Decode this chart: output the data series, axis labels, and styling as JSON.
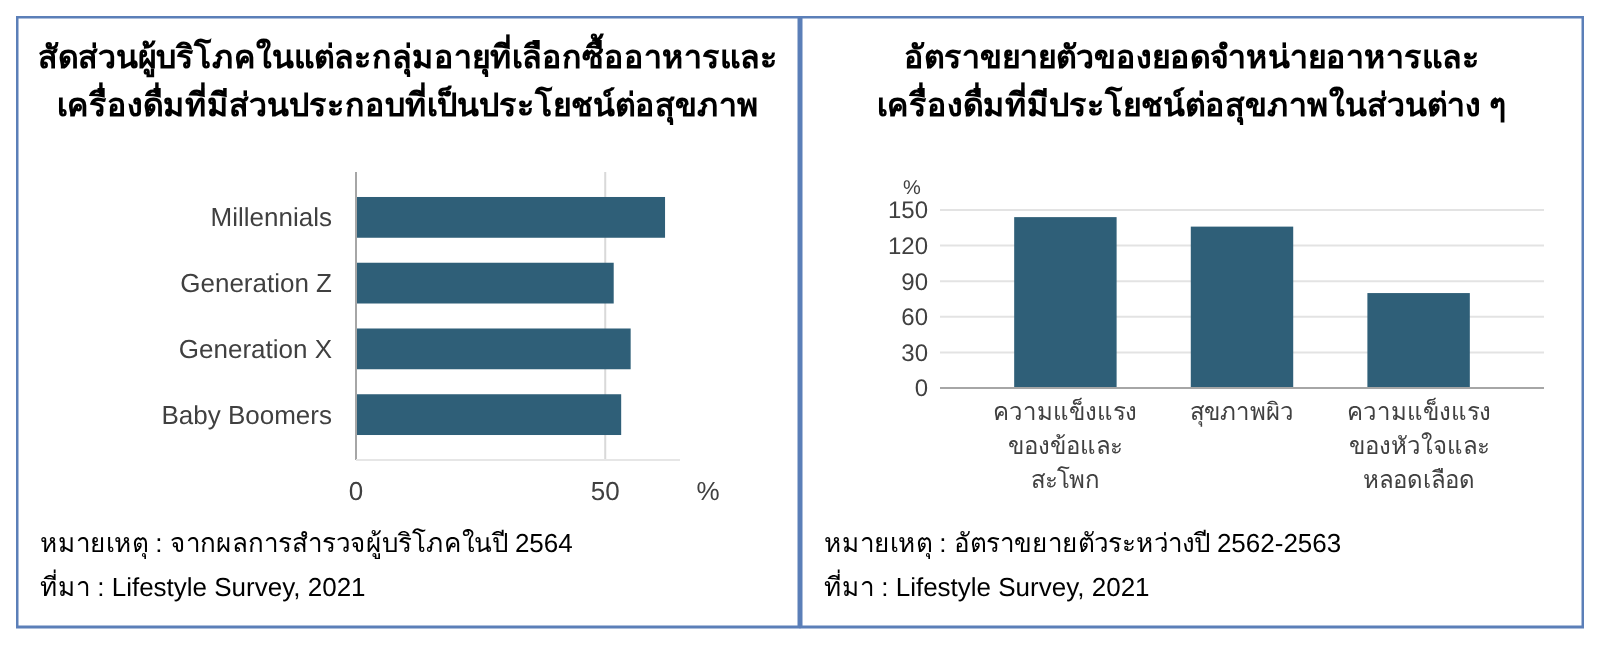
{
  "chart_data": [
    {
      "type": "bar",
      "orientation": "horizontal",
      "title": "สัดส่วนผู้บริโภคในแต่ละกลุ่มอายุที่เลือกซื้ออาหารและ\nเครื่องดื่มที่มีส่วนประกอบที่เป็นประโยชน์ต่อสุขภาพ",
      "categories": [
        "Millennials",
        "Generation Z",
        "Generation X",
        "Baby Boomers"
      ],
      "values": [
        62,
        51.7,
        55.1,
        53.2
      ],
      "color": "#2f5f78",
      "xlim": [
        0,
        65
      ],
      "xticks": [
        0,
        50
      ],
      "xlabel": "%",
      "grid": "x",
      "annotations": [
        "หมายเหตุ : จากผลการสำรวจผู้บริโภคในปี 2564",
        "ที่มา : Lifestyle Survey, 2021"
      ]
    },
    {
      "type": "bar",
      "title": "อัตราขยายตัวของยอดจำหน่ายอาหารและ\nเครื่องดื่มที่มีประโยชน์ต่อสุขภาพในส่วนต่าง ๆ",
      "categories": [
        "ความแข็งแรง\nของข้อและ\nสะโพก",
        "สุขภาพผิว",
        "ความแข็งแรง\nของหัวใจและ\nหลอดเลือด"
      ],
      "values": [
        144,
        136,
        80
      ],
      "color": "#2f5f78",
      "ylim": [
        0,
        150
      ],
      "yticks": [
        0,
        30,
        60,
        90,
        120,
        150
      ],
      "ylabel": "%",
      "grid": "y",
      "annotations": [
        "หมายเหตุ : อัตราขยายตัวระหว่างปี 2562-2563",
        "ที่มา : Lifestyle Survey, 2021"
      ]
    }
  ]
}
